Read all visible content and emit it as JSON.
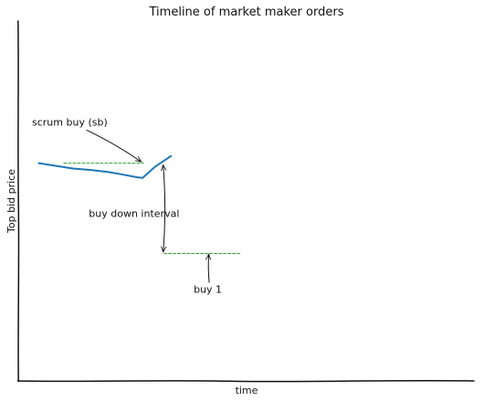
{
  "chart_data": {
    "type": "line",
    "style": "xkcd hand-drawn sketch",
    "title": "Timeline of market maker orders",
    "xlabel": "time",
    "ylabel": "Top bid price",
    "xlim": [
      0,
      100
    ],
    "ylim": [
      0,
      100
    ],
    "ticks": false,
    "grid": false,
    "legend": "none",
    "series": [
      {
        "role": "top-bid-price",
        "color": "#1f77b4",
        "style": "solid",
        "x": [
          4.5,
          8,
          12,
          16,
          20,
          23,
          26,
          27.3,
          30,
          33.5
        ],
        "y": [
          60.5,
          59.8,
          59.0,
          58.6,
          58.0,
          57.3,
          56.6,
          56.4,
          59.5,
          62.5
        ]
      },
      {
        "role": "scrum-buy-level",
        "color": "#2ca02c",
        "style": "dashed",
        "x": [
          10,
          27.5
        ],
        "y": [
          60.5,
          60.5
        ]
      },
      {
        "role": "buy-1-level",
        "color": "#2ca02c",
        "style": "dashed",
        "x": [
          32,
          42,
          49
        ],
        "y": [
          35.4,
          35.4,
          35.4
        ]
      }
    ],
    "annotations": [
      {
        "text": "scrum buy (sb)",
        "text_xy": [
          3,
          71
        ],
        "target_xy": [
          27,
          60.9
        ]
      },
      {
        "text": "buy down interval",
        "text_xy": [
          15.5,
          45.5
        ],
        "arrow": "double",
        "x": 31.8,
        "y_from": 60.0,
        "y_to": 35.8
      },
      {
        "text": "buy 1",
        "text_xy": [
          38.5,
          24.5
        ],
        "target_xy": [
          41.8,
          35.2
        ]
      }
    ]
  }
}
